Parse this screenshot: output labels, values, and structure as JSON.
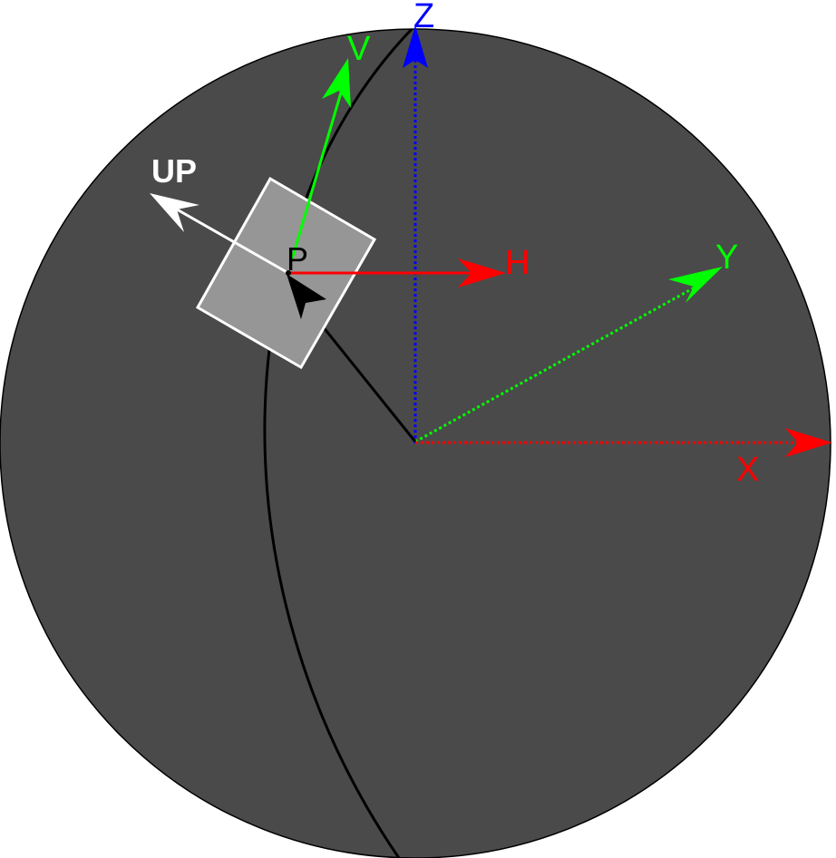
{
  "diagram": {
    "labels": {
      "z": "Z",
      "v": "V",
      "up": "UP",
      "p": "P",
      "h": "H",
      "y": "Y",
      "x": "X"
    },
    "colors": {
      "background": "#ffffff",
      "sphere_fill": "#4a4a4a",
      "sphere_stroke": "#000000",
      "meridian": "#000000",
      "plane_fill": "#969696",
      "plane_stroke": "#ffffff",
      "x_axis": "#ff0000",
      "y_axis": "#00ff00",
      "z_axis": "#0000ff",
      "h_vector": "#ff0000",
      "v_vector": "#00ff00",
      "up_vector": "#ffffff",
      "p_vector": "#000000",
      "p_label": "#000000"
    }
  }
}
